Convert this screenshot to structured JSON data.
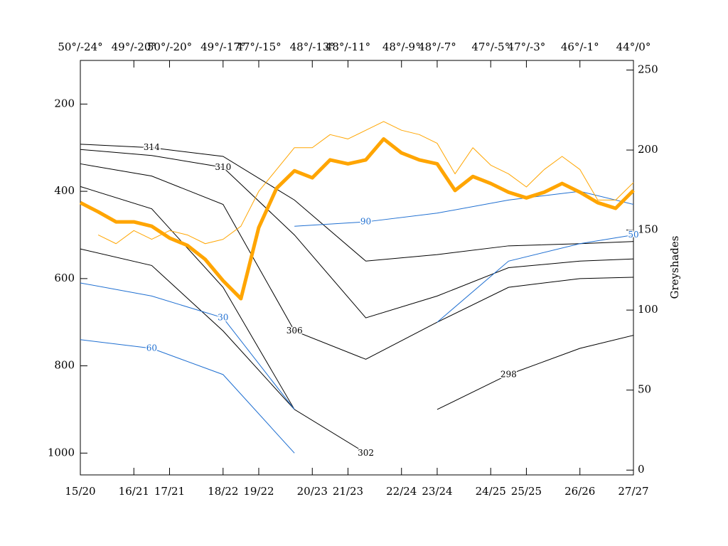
{
  "chart_data": {
    "type": "line",
    "xlim": [
      0,
      31
    ],
    "xticks": [
      {
        "value": 0,
        "label": "15/20"
      },
      {
        "value": 3,
        "label": "16/21"
      },
      {
        "value": 5,
        "label": "17/21"
      },
      {
        "value": 8,
        "label": "18/22"
      },
      {
        "value": 10,
        "label": "19/22"
      },
      {
        "value": 13,
        "label": "20/23"
      },
      {
        "value": 15,
        "label": "21/23"
      },
      {
        "value": 18,
        "label": "22/24"
      },
      {
        "value": 20,
        "label": "23/24"
      },
      {
        "value": 23,
        "label": "24/25"
      },
      {
        "value": 25,
        "label": "25/25"
      },
      {
        "value": 28,
        "label": "26/26"
      },
      {
        "value": 31,
        "label": "27/27"
      }
    ],
    "x2ticks": [
      {
        "value": 0,
        "label": "50°/-24°"
      },
      {
        "value": 3,
        "label": "49°/-20°"
      },
      {
        "value": 5,
        "label": "50°/-20°"
      },
      {
        "value": 8,
        "label": "49°/-17°"
      },
      {
        "value": 10,
        "label": "47°/-15°"
      },
      {
        "value": 13,
        "label": "48°/-13°"
      },
      {
        "value": 15,
        "label": "48°/-11°"
      },
      {
        "value": 18,
        "label": "48°/-9°"
      },
      {
        "value": 20,
        "label": "48°/-7°"
      },
      {
        "value": 23,
        "label": "47°/-5°"
      },
      {
        "value": 25,
        "label": "47°/-3°"
      },
      {
        "value": 28,
        "label": "46°/-1°"
      },
      {
        "value": 31,
        "label": "44°/0°"
      }
    ],
    "ylim": [
      1050,
      100
    ],
    "yticks": [
      200,
      400,
      600,
      800,
      1000
    ],
    "y2label": "Greyshades",
    "y2lim": [
      -3,
      256
    ],
    "y2ticks": [
      0,
      50,
      100,
      150,
      200,
      250
    ],
    "x": [
      0,
      1,
      2,
      3,
      4,
      5,
      6,
      7,
      8,
      9,
      10,
      11,
      12,
      13,
      14,
      15,
      16,
      17,
      18,
      19,
      20,
      21,
      22,
      23,
      24,
      25,
      26,
      27,
      28,
      29,
      30,
      31
    ],
    "series": [
      {
        "color": "#ffa500",
        "line_width": 5,
        "values": [
          426,
          447,
          470,
          470,
          480,
          507,
          524,
          556,
          605,
          646,
          483,
          393,
          353,
          369,
          328,
          337,
          328,
          280,
          312,
          328,
          337,
          398,
          366,
          382,
          402,
          415,
          402,
          382,
          402,
          426,
          439,
          398
        ]
      },
      {
        "color": "#ffa500",
        "line_width": 1,
        "values": [
          null,
          500,
          520,
          490,
          510,
          490,
          500,
          520,
          510,
          480,
          400,
          350,
          300,
          300,
          270,
          280,
          260,
          240,
          260,
          270,
          290,
          360,
          300,
          340,
          360,
          390,
          350,
          320,
          350,
          420,
          420,
          380
        ]
      }
    ],
    "contours": {
      "x": [
        0,
        4,
        8,
        12,
        16,
        20,
        24,
        28,
        31
      ],
      "lines": [
        {
          "level": 314,
          "color": "#000000",
          "values": [
            292,
            300,
            320,
            420,
            560,
            545,
            525,
            520,
            515
          ]
        },
        {
          "level": 310,
          "color": "#000000",
          "values": [
            304,
            318,
            345,
            500,
            690,
            640,
            575,
            560,
            555
          ]
        },
        {
          "level": 306,
          "color": "#000000",
          "values": [
            337,
            365,
            430,
            720,
            785,
            700,
            620,
            600,
            597
          ]
        },
        {
          "level": 302,
          "color": "#000000",
          "values": [
            389,
            440,
            620,
            900,
            1000,
            null,
            null,
            null,
            null
          ]
        },
        {
          "level": 298,
          "color": "#000000",
          "values": [
            532,
            570,
            720,
            900,
            null,
            900,
            820,
            760,
            730
          ]
        },
        {
          "level": 90,
          "color": "#1f6fd1",
          "values": [
            null,
            null,
            null,
            480,
            470,
            450,
            420,
            400,
            430
          ]
        },
        {
          "level": 60,
          "color": "#1f6fd1",
          "values": [
            740,
            760,
            820,
            1000,
            null,
            null,
            null,
            null,
            null
          ]
        },
        {
          "level": 30,
          "color": "#1f6fd1",
          "values": [
            610,
            640,
            690,
            900,
            null,
            null,
            null,
            null,
            null
          ]
        },
        {
          "level": 50,
          "color": "#1f6fd1",
          "values": [
            null,
            null,
            null,
            null,
            null,
            700,
            560,
            520,
            500
          ]
        }
      ]
    }
  }
}
